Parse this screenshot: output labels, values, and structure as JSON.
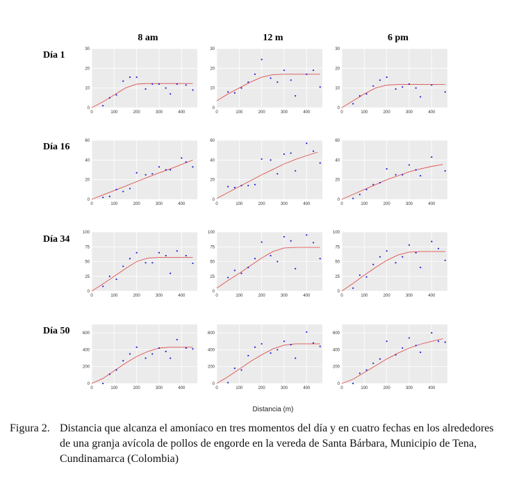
{
  "figure": {
    "columns": [
      "8 am",
      "12 m",
      "6 pm"
    ],
    "rows": [
      "Día 1",
      "Día 16",
      "Día 34",
      "Día 50"
    ],
    "xlabel": "Distancia (m)",
    "caption_label": "Figura 2.",
    "caption_text": "Distancia que alcanza el amoníaco en tres momentos del día y en cuatro fechas en los alrededores de una granja avícola de pollos de engorde en la vereda de Santa Bárbara, Municipio de Tena, Cundinamarca (Colombia)"
  },
  "colors": {
    "panel_bg": "#ebebeb",
    "grid": "#ffffff",
    "points": "#1f1fd6",
    "fit_line": "#e05050"
  },
  "chart_data": [
    {
      "type": "scatter",
      "row": "Día 1",
      "col": "8 am",
      "xlim": [
        0,
        470
      ],
      "ylim": [
        0,
        30
      ],
      "xticks": [
        0,
        100,
        200,
        300,
        400
      ],
      "yticks": [
        0,
        10,
        20,
        30
      ],
      "points": [
        [
          50,
          1
        ],
        [
          80,
          5
        ],
        [
          110,
          6.5
        ],
        [
          140,
          13.5
        ],
        [
          170,
          15.5
        ],
        [
          200,
          15.5
        ],
        [
          240,
          9.5
        ],
        [
          270,
          12
        ],
        [
          300,
          12
        ],
        [
          330,
          10
        ],
        [
          350,
          7
        ],
        [
          380,
          12
        ],
        [
          420,
          11.5
        ],
        [
          450,
          9
        ]
      ],
      "fit": [
        [
          0,
          0
        ],
        [
          50,
          3
        ],
        [
          100,
          6.5
        ],
        [
          150,
          10
        ],
        [
          200,
          12
        ],
        [
          250,
          12.3
        ],
        [
          300,
          12.3
        ],
        [
          350,
          12.3
        ],
        [
          400,
          12.3
        ],
        [
          450,
          12.3
        ]
      ]
    },
    {
      "type": "scatter",
      "row": "Día 1",
      "col": "12 m",
      "xlim": [
        0,
        470
      ],
      "ylim": [
        0,
        30
      ],
      "xticks": [
        0,
        100,
        200,
        300,
        400
      ],
      "yticks": [
        0,
        10,
        20,
        30
      ],
      "points": [
        [
          50,
          8
        ],
        [
          80,
          7.5
        ],
        [
          110,
          10
        ],
        [
          140,
          13
        ],
        [
          170,
          17
        ],
        [
          200,
          24.5
        ],
        [
          240,
          15
        ],
        [
          270,
          13
        ],
        [
          300,
          19
        ],
        [
          330,
          14
        ],
        [
          350,
          6
        ],
        [
          400,
          17
        ],
        [
          430,
          19
        ],
        [
          460,
          10.5
        ]
      ],
      "fit": [
        [
          0,
          3.5
        ],
        [
          50,
          7
        ],
        [
          100,
          10
        ],
        [
          150,
          13
        ],
        [
          200,
          15.5
        ],
        [
          250,
          16.8
        ],
        [
          300,
          17
        ],
        [
          350,
          17
        ],
        [
          400,
          17
        ],
        [
          460,
          17
        ]
      ]
    },
    {
      "type": "scatter",
      "row": "Día 1",
      "col": "6 pm",
      "xlim": [
        0,
        470
      ],
      "ylim": [
        0,
        30
      ],
      "xticks": [
        0,
        100,
        200,
        300,
        400
      ],
      "yticks": [
        0,
        10,
        20,
        30
      ],
      "points": [
        [
          50,
          2
        ],
        [
          80,
          6
        ],
        [
          110,
          7
        ],
        [
          140,
          11
        ],
        [
          170,
          14
        ],
        [
          200,
          15.5
        ],
        [
          240,
          9.5
        ],
        [
          270,
          10.5
        ],
        [
          300,
          12
        ],
        [
          330,
          10
        ],
        [
          350,
          5.5
        ],
        [
          400,
          11.5
        ],
        [
          460,
          8
        ]
      ],
      "fit": [
        [
          0,
          0
        ],
        [
          50,
          3.5
        ],
        [
          100,
          7
        ],
        [
          150,
          10
        ],
        [
          200,
          11.5
        ],
        [
          250,
          11.8
        ],
        [
          300,
          11.8
        ],
        [
          350,
          11.8
        ],
        [
          400,
          11.8
        ],
        [
          460,
          11.8
        ]
      ]
    },
    {
      "type": "scatter",
      "row": "Día 16",
      "col": "8 am",
      "xlim": [
        0,
        470
      ],
      "ylim": [
        0,
        60
      ],
      "xticks": [
        0,
        100,
        200,
        300,
        400
      ],
      "yticks": [
        0,
        20,
        40,
        60
      ],
      "points": [
        [
          50,
          2
        ],
        [
          80,
          3
        ],
        [
          110,
          10
        ],
        [
          140,
          8
        ],
        [
          170,
          11
        ],
        [
          200,
          27
        ],
        [
          240,
          25
        ],
        [
          270,
          26
        ],
        [
          300,
          33
        ],
        [
          330,
          30
        ],
        [
          350,
          30
        ],
        [
          400,
          42
        ],
        [
          420,
          38
        ],
        [
          450,
          33
        ]
      ],
      "fit": [
        [
          0,
          0
        ],
        [
          50,
          4.5
        ],
        [
          100,
          9
        ],
        [
          150,
          13.5
        ],
        [
          200,
          18
        ],
        [
          250,
          22.5
        ],
        [
          300,
          27
        ],
        [
          350,
          31
        ],
        [
          400,
          35.5
        ],
        [
          450,
          40
        ]
      ]
    },
    {
      "type": "scatter",
      "row": "Día 16",
      "col": "12 m",
      "xlim": [
        0,
        470
      ],
      "ylim": [
        0,
        60
      ],
      "xticks": [
        0,
        100,
        200,
        300,
        400
      ],
      "yticks": [
        0,
        20,
        40,
        60
      ],
      "points": [
        [
          50,
          13
        ],
        [
          80,
          12
        ],
        [
          110,
          14
        ],
        [
          140,
          14
        ],
        [
          170,
          15
        ],
        [
          200,
          41
        ],
        [
          240,
          40
        ],
        [
          270,
          26
        ],
        [
          300,
          46
        ],
        [
          330,
          47
        ],
        [
          350,
          29
        ],
        [
          400,
          57
        ],
        [
          430,
          49
        ],
        [
          460,
          37
        ]
      ],
      "fit": [
        [
          0,
          1
        ],
        [
          50,
          7
        ],
        [
          100,
          13
        ],
        [
          150,
          19
        ],
        [
          200,
          25
        ],
        [
          250,
          30.5
        ],
        [
          300,
          36
        ],
        [
          350,
          40.5
        ],
        [
          400,
          44.5
        ],
        [
          450,
          48
        ]
      ]
    },
    {
      "type": "scatter",
      "row": "Día 16",
      "col": "6 pm",
      "xlim": [
        0,
        470
      ],
      "ylim": [
        0,
        60
      ],
      "xticks": [
        0,
        100,
        200,
        300,
        400
      ],
      "yticks": [
        0,
        20,
        40,
        60
      ],
      "points": [
        [
          50,
          1
        ],
        [
          80,
          5
        ],
        [
          110,
          10
        ],
        [
          140,
          15
        ],
        [
          170,
          17
        ],
        [
          200,
          31
        ],
        [
          240,
          25
        ],
        [
          270,
          25
        ],
        [
          300,
          35
        ],
        [
          330,
          30
        ],
        [
          350,
          24
        ],
        [
          400,
          43
        ],
        [
          460,
          29
        ]
      ],
      "fit": [
        [
          0,
          0
        ],
        [
          50,
          5
        ],
        [
          100,
          10
        ],
        [
          150,
          15
        ],
        [
          200,
          20
        ],
        [
          250,
          24
        ],
        [
          300,
          28
        ],
        [
          350,
          31
        ],
        [
          400,
          33.5
        ],
        [
          450,
          35.5
        ]
      ]
    },
    {
      "type": "scatter",
      "row": "Día 34",
      "col": "8 am",
      "xlim": [
        0,
        470
      ],
      "ylim": [
        0,
        100
      ],
      "xticks": [
        0,
        100,
        200,
        300,
        400
      ],
      "yticks": [
        0,
        25,
        50,
        75,
        100
      ],
      "points": [
        [
          50,
          8
        ],
        [
          80,
          25
        ],
        [
          110,
          20
        ],
        [
          140,
          42
        ],
        [
          170,
          55
        ],
        [
          200,
          65
        ],
        [
          240,
          48
        ],
        [
          270,
          48
        ],
        [
          300,
          65
        ],
        [
          330,
          60
        ],
        [
          350,
          30
        ],
        [
          380,
          68
        ],
        [
          420,
          60
        ],
        [
          450,
          47
        ]
      ],
      "fit": [
        [
          0,
          0
        ],
        [
          50,
          12
        ],
        [
          100,
          25
        ],
        [
          150,
          38
        ],
        [
          200,
          50
        ],
        [
          250,
          56
        ],
        [
          300,
          57
        ],
        [
          350,
          57
        ],
        [
          400,
          57
        ],
        [
          450,
          57
        ]
      ]
    },
    {
      "type": "scatter",
      "row": "Día 34",
      "col": "12 m",
      "xlim": [
        0,
        470
      ],
      "ylim": [
        0,
        100
      ],
      "xticks": [
        0,
        100,
        200,
        300,
        400
      ],
      "yticks": [
        0,
        25,
        50,
        75,
        100
      ],
      "points": [
        [
          50,
          23
        ],
        [
          80,
          35
        ],
        [
          110,
          30
        ],
        [
          140,
          40
        ],
        [
          170,
          55
        ],
        [
          200,
          83
        ],
        [
          240,
          60
        ],
        [
          270,
          50
        ],
        [
          300,
          92
        ],
        [
          330,
          85
        ],
        [
          350,
          38
        ],
        [
          400,
          95
        ],
        [
          430,
          82
        ],
        [
          460,
          55
        ]
      ],
      "fit": [
        [
          0,
          5
        ],
        [
          50,
          18
        ],
        [
          100,
          30
        ],
        [
          150,
          43
        ],
        [
          200,
          56
        ],
        [
          250,
          67
        ],
        [
          300,
          73
        ],
        [
          350,
          74
        ],
        [
          400,
          74
        ],
        [
          460,
          74
        ]
      ]
    },
    {
      "type": "scatter",
      "row": "Día 34",
      "col": "6 pm",
      "xlim": [
        0,
        470
      ],
      "ylim": [
        0,
        100
      ],
      "xticks": [
        0,
        100,
        200,
        300,
        400
      ],
      "yticks": [
        0,
        25,
        50,
        75,
        100
      ],
      "points": [
        [
          50,
          5
        ],
        [
          80,
          27
        ],
        [
          110,
          24
        ],
        [
          140,
          45
        ],
        [
          170,
          58
        ],
        [
          200,
          68
        ],
        [
          240,
          48
        ],
        [
          270,
          58
        ],
        [
          300,
          78
        ],
        [
          330,
          65
        ],
        [
          350,
          40
        ],
        [
          400,
          84
        ],
        [
          430,
          72
        ],
        [
          460,
          52
        ]
      ],
      "fit": [
        [
          0,
          0
        ],
        [
          50,
          13
        ],
        [
          100,
          27
        ],
        [
          150,
          40
        ],
        [
          200,
          52
        ],
        [
          250,
          61
        ],
        [
          300,
          66
        ],
        [
          350,
          67
        ],
        [
          400,
          67
        ],
        [
          460,
          67
        ]
      ]
    },
    {
      "type": "scatter",
      "row": "Día 50",
      "col": "8 am",
      "xlim": [
        0,
        470
      ],
      "ylim": [
        0,
        700
      ],
      "xticks": [
        0,
        100,
        200,
        300,
        400
      ],
      "yticks": [
        0,
        200,
        400,
        600
      ],
      "points": [
        [
          50,
          0
        ],
        [
          80,
          110
        ],
        [
          110,
          160
        ],
        [
          140,
          270
        ],
        [
          170,
          350
        ],
        [
          200,
          430
        ],
        [
          240,
          300
        ],
        [
          270,
          350
        ],
        [
          300,
          420
        ],
        [
          330,
          380
        ],
        [
          350,
          300
        ],
        [
          380,
          520
        ],
        [
          420,
          420
        ],
        [
          450,
          410
        ]
      ],
      "fit": [
        [
          0,
          0
        ],
        [
          50,
          60
        ],
        [
          100,
          150
        ],
        [
          150,
          240
        ],
        [
          200,
          320
        ],
        [
          250,
          380
        ],
        [
          300,
          420
        ],
        [
          350,
          430
        ],
        [
          400,
          430
        ],
        [
          450,
          430
        ]
      ]
    },
    {
      "type": "scatter",
      "row": "Día 50",
      "col": "12 m",
      "xlim": [
        0,
        470
      ],
      "ylim": [
        0,
        700
      ],
      "xticks": [
        0,
        100,
        200,
        300,
        400
      ],
      "yticks": [
        0,
        200,
        400,
        600
      ],
      "points": [
        [
          50,
          10
        ],
        [
          80,
          180
        ],
        [
          110,
          160
        ],
        [
          140,
          330
        ],
        [
          170,
          430
        ],
        [
          200,
          470
        ],
        [
          240,
          360
        ],
        [
          270,
          400
        ],
        [
          300,
          500
        ],
        [
          330,
          460
        ],
        [
          350,
          300
        ],
        [
          400,
          610
        ],
        [
          430,
          480
        ],
        [
          460,
          440
        ]
      ],
      "fit": [
        [
          0,
          0
        ],
        [
          50,
          80
        ],
        [
          100,
          170
        ],
        [
          150,
          260
        ],
        [
          200,
          340
        ],
        [
          250,
          410
        ],
        [
          300,
          455
        ],
        [
          350,
          470
        ],
        [
          400,
          470
        ],
        [
          460,
          470
        ]
      ]
    },
    {
      "type": "scatter",
      "row": "Día 50",
      "col": "6 pm",
      "xlim": [
        0,
        470
      ],
      "ylim": [
        0,
        700
      ],
      "xticks": [
        0,
        100,
        200,
        300,
        400
      ],
      "yticks": [
        0,
        200,
        400,
        600
      ],
      "points": [
        [
          50,
          0
        ],
        [
          80,
          120
        ],
        [
          110,
          160
        ],
        [
          140,
          240
        ],
        [
          170,
          290
        ],
        [
          200,
          500
        ],
        [
          240,
          340
        ],
        [
          270,
          420
        ],
        [
          300,
          540
        ],
        [
          330,
          450
        ],
        [
          350,
          370
        ],
        [
          400,
          600
        ],
        [
          430,
          500
        ],
        [
          460,
          490
        ]
      ],
      "fit": [
        [
          0,
          0
        ],
        [
          50,
          50
        ],
        [
          100,
          130
        ],
        [
          150,
          210
        ],
        [
          200,
          290
        ],
        [
          250,
          360
        ],
        [
          300,
          420
        ],
        [
          350,
          465
        ],
        [
          400,
          500
        ],
        [
          450,
          530
        ]
      ]
    }
  ]
}
